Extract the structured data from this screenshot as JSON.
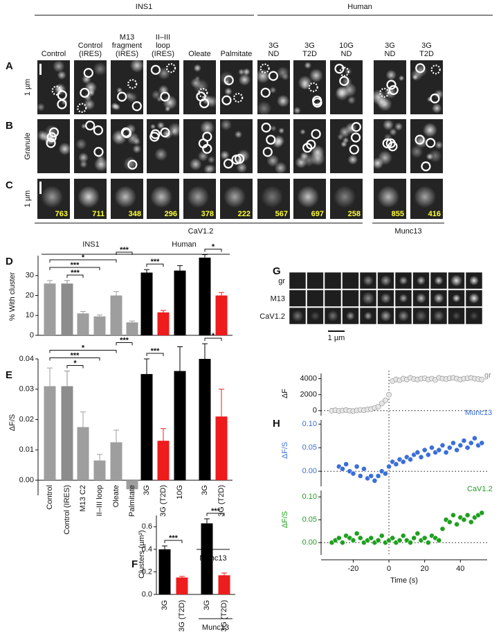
{
  "panel_labels": [
    "A",
    "B",
    "C",
    "D",
    "E",
    "F",
    "G",
    "H"
  ],
  "top": {
    "groups": [
      "INS1",
      "Human"
    ],
    "columns": [
      [
        "Control"
      ],
      [
        "Control",
        "(IRES)"
      ],
      [
        "M13",
        "fragment",
        "(IRES)"
      ],
      [
        "II–III",
        "loop",
        "(IRES)"
      ],
      [
        "Oleate"
      ],
      [
        "Palmitate"
      ],
      [
        "3G",
        "ND"
      ],
      [
        "3G",
        "T2D"
      ],
      [
        "10G",
        "ND"
      ],
      [
        "3G",
        "ND"
      ],
      [
        "3G",
        "T2D"
      ]
    ],
    "row_labels": [
      "1 µm",
      "Granule",
      "1 µm"
    ],
    "counts": [
      763,
      711,
      348,
      296,
      378,
      222,
      567,
      697,
      258,
      855,
      416
    ],
    "footers": [
      "CaV1.2",
      "Munc13"
    ]
  },
  "panel_g": {
    "rows": [
      "gr",
      "M13",
      "CaV1.2"
    ],
    "scale_bar": "1 µm"
  },
  "chart_data": [
    {
      "type": "bar",
      "ylabel": "% With cluster",
      "categories": [
        null,
        null,
        null,
        null,
        null,
        null,
        null,
        null,
        null,
        null,
        null
      ],
      "values": [
        26,
        26,
        11,
        9.5,
        20,
        6.5,
        31.5,
        11.5,
        32.5,
        39,
        20
      ],
      "errors": [
        1.5,
        1.5,
        1,
        0.7,
        2,
        0.7,
        1.5,
        1,
        2.5,
        1.5,
        1.5
      ],
      "colors": [
        "#9e9e9e",
        "#8c8c8c",
        "#9e9e9e",
        "#9e9e9e",
        "#9e9e9e",
        "#9e9e9e",
        "#000000",
        "#ee1c1c",
        "#000000",
        "#000000",
        "#ee1c1c"
      ],
      "ylim": [
        0,
        40
      ],
      "yticks": [
        0,
        10,
        20,
        30
      ],
      "groups": [
        {
          "label": "INS1",
          "span": [
            0,
            5
          ]
        },
        {
          "label": "Human",
          "span": [
            6,
            10
          ]
        }
      ],
      "annotations": [
        {
          "pair": [
            1,
            2
          ],
          "label": "***"
        },
        {
          "pair": [
            0,
            3
          ],
          "label": "***"
        },
        {
          "pair": [
            0,
            4
          ],
          "label": "*"
        },
        {
          "pair": [
            4,
            5
          ],
          "label": "***"
        },
        {
          "pair": [
            6,
            7
          ],
          "label": "***"
        },
        {
          "pair": [
            9,
            10
          ],
          "label": "*"
        }
      ]
    },
    {
      "type": "bar",
      "ylabel": "ΔF/S",
      "categories": [
        "Control",
        "Control (IRES)",
        "M13 C2",
        "II–III loop",
        "Oleate",
        "Palmitate",
        "3G",
        "3G (T2D)",
        "10G",
        "3G",
        "3G (T2D)"
      ],
      "values": [
        0.031,
        0.031,
        0.0175,
        0.0065,
        0.0125,
        -0.003,
        0.035,
        0.013,
        0.036,
        0.04,
        0.021
      ],
      "errors": [
        0.006,
        0.005,
        0.005,
        0.002,
        0.004,
        0.001,
        0.005,
        0.004,
        0.008,
        0.005,
        0.009
      ],
      "colors": [
        "#9e9e9e",
        "#8c8c8c",
        "#9e9e9e",
        "#9e9e9e",
        "#9e9e9e",
        "#9e9e9e",
        "#000000",
        "#ee1c1c",
        "#000000",
        "#000000",
        "#ee1c1c"
      ],
      "ylim": [
        -0.005,
        0.04
      ],
      "yticks": [
        {
          "value": 0,
          "label": "0.00"
        },
        0.01,
        0.02,
        0.03,
        0.04
      ],
      "groups": [
        {
          "label": "Munc13",
          "span": [
            9,
            10
          ]
        }
      ],
      "annotations": [
        {
          "pair": [
            1,
            2
          ],
          "label": "*"
        },
        {
          "pair": [
            0,
            3
          ],
          "label": "***"
        },
        {
          "pair": [
            0,
            4
          ],
          "label": "*"
        },
        {
          "pair": [
            4,
            5
          ],
          "label": "***"
        },
        {
          "pair": [
            6,
            7
          ],
          "label": "***"
        },
        {
          "pair": [
            9,
            10
          ],
          "label": "*"
        }
      ]
    },
    {
      "type": "bar",
      "ylabel": "Clusters (µm²)",
      "categories": [
        "3G",
        "3G (T2D)",
        "3G",
        "3G (T2D)"
      ],
      "values": [
        0.4,
        0.15,
        0.63,
        0.17
      ],
      "errors": [
        0.03,
        0.01,
        0.04,
        0.02
      ],
      "colors": [
        "#000000",
        "#ee1c1c",
        "#000000",
        "#ee1c1c"
      ],
      "ylim": [
        0,
        0.7
      ],
      "yticks": [
        {
          "value": 0,
          "label": "0.0"
        },
        0.2,
        0.4,
        0.6
      ],
      "groups": [
        {
          "label": "Munc13",
          "span": [
            2,
            3
          ]
        }
      ],
      "annotations": [
        {
          "pair": [
            0,
            1
          ],
          "label": "***"
        },
        {
          "pair": [
            2,
            3
          ],
          "label": "***"
        }
      ]
    },
    {
      "type": "scatter",
      "ylabel": "ΔF",
      "reference_x": 0,
      "reference_y": 0,
      "x": [
        -32,
        -30,
        -28,
        -26,
        -24,
        -22,
        -20,
        -18,
        -16,
        -14,
        -12,
        -10,
        -8,
        -6,
        -4,
        -2,
        0,
        2,
        4,
        6,
        8,
        10,
        12,
        14,
        16,
        18,
        20,
        22,
        24,
        26,
        28,
        30,
        32,
        34,
        36,
        38,
        40,
        42,
        44,
        46,
        48,
        50,
        52
      ],
      "series": [
        {
          "name": "gr",
          "color": "#8a8a8a",
          "values": [
            0,
            50,
            -30,
            20,
            80,
            0,
            -50,
            30,
            100,
            60,
            150,
            200,
            350,
            500,
            900,
            1300,
            2000,
            3700,
            3900,
            3800,
            4000,
            3900,
            4100,
            3950,
            3900,
            4000,
            4050,
            3900,
            4000,
            3850,
            4100,
            4000,
            3950,
            4050,
            4100,
            4000,
            3900,
            4000,
            4050,
            4100,
            4000,
            3950,
            3900
          ]
        }
      ],
      "xlim": [
        -38,
        55
      ],
      "ylim": [
        -800,
        5000
      ],
      "yticks": [
        0,
        2000,
        4000
      ]
    },
    {
      "type": "scatter",
      "ylabel": "ΔF/S",
      "reference_x": 0,
      "reference_y": 0,
      "x": [
        -32,
        -30,
        -28,
        -26,
        -24,
        -22,
        -20,
        -18,
        -16,
        -14,
        -12,
        -10,
        -8,
        -6,
        -4,
        -2,
        0,
        2,
        4,
        6,
        8,
        10,
        12,
        14,
        16,
        18,
        20,
        22,
        24,
        26,
        28,
        30,
        32,
        34,
        36,
        38,
        40,
        42,
        44,
        46,
        48,
        50,
        52
      ],
      "series": [
        {
          "name": "Munc13",
          "color": "#3a6fd8",
          "values": [
            null,
            null,
            0.01,
            0.005,
            0.015,
            0.0,
            -0.005,
            0.01,
            -0.01,
            0.005,
            -0.015,
            -0.01,
            -0.02,
            -0.01,
            0.0,
            -0.005,
            0.01,
            0.02,
            0.015,
            0.025,
            0.02,
            0.03,
            0.025,
            0.035,
            0.04,
            0.03,
            0.045,
            0.035,
            0.05,
            0.04,
            0.045,
            0.055,
            0.04,
            0.05,
            0.06,
            0.045,
            0.055,
            0.065,
            0.05,
            0.06,
            0.07,
            0.055,
            0.06
          ]
        }
      ],
      "xlim": [
        -38,
        55
      ],
      "ylim": [
        -0.035,
        0.115
      ],
      "yticks": [
        {
          "value": 0,
          "label": "0.00"
        },
        0.05,
        {
          "value": 0.1,
          "label": "0.10"
        }
      ]
    },
    {
      "type": "scatter",
      "ylabel": "ΔF/S",
      "xlabel": "Time (s)",
      "reference_x": 0,
      "reference_y": 0,
      "x": [
        -32,
        -30,
        -28,
        -26,
        -24,
        -22,
        -20,
        -18,
        -16,
        -14,
        -12,
        -10,
        -8,
        -6,
        -4,
        -2,
        0,
        2,
        4,
        6,
        8,
        10,
        12,
        14,
        16,
        18,
        20,
        22,
        24,
        26,
        28,
        30,
        32,
        34,
        36,
        38,
        40,
        42,
        44,
        46,
        48,
        50,
        52
      ],
      "series": [
        {
          "name": "CaV1.2",
          "color": "#1fa01f",
          "values": [
            0.0,
            0.005,
            0.01,
            0.0,
            0.015,
            0.01,
            0.005,
            0.02,
            0.01,
            0.0,
            0.005,
            0.01,
            0.0,
            0.005,
            0.015,
            0.0,
            0.005,
            0.01,
            0.0,
            0.005,
            0.015,
            0.005,
            0.0,
            0.01,
            0.02,
            0.005,
            0.01,
            0.0,
            0.015,
            0.01,
            0.005,
            0.03,
            0.05,
            0.045,
            0.06,
            0.04,
            0.055,
            0.05,
            0.06,
            0.045,
            0.055,
            0.06,
            0.065
          ]
        }
      ],
      "xlim": [
        -38,
        55
      ],
      "ylim": [
        -0.03,
        0.12
      ],
      "xticks": [
        -20,
        0,
        20,
        40
      ],
      "yticks": [
        {
          "value": 0,
          "label": "0.00"
        },
        0.05,
        {
          "value": 0.1,
          "label": "0.10"
        }
      ]
    }
  ]
}
